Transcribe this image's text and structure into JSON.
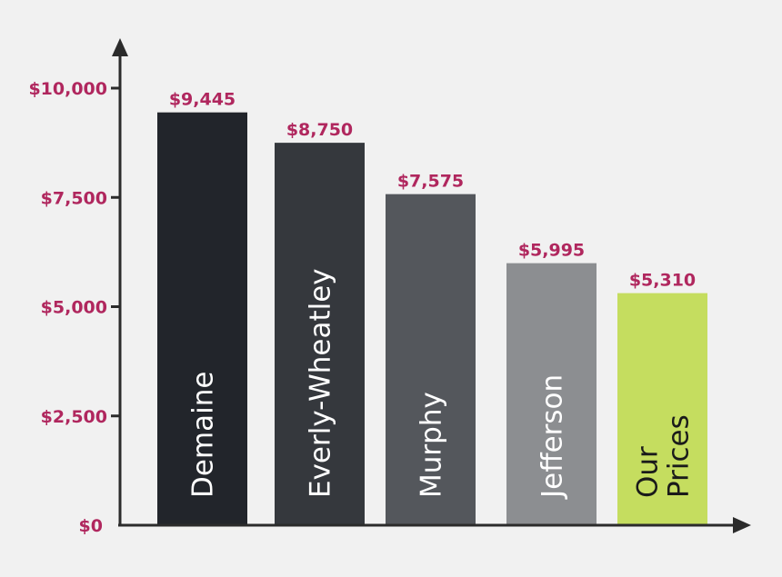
{
  "chart_data": {
    "type": "bar",
    "categories": [
      "Demaine",
      "Everly-Wheatley",
      "Murphy",
      "Jefferson",
      "Our Prices"
    ],
    "category_lines": [
      [
        "Demaine"
      ],
      [
        "Everly-Wheatley"
      ],
      [
        "Murphy"
      ],
      [
        "Jefferson"
      ],
      [
        "Our",
        "Prices"
      ]
    ],
    "values": [
      9445,
      8750,
      7575,
      5995,
      5310
    ],
    "value_labels": [
      "$9,445",
      "$8,750",
      "$7,575",
      "$5,995",
      "$5,310"
    ],
    "bar_colors": [
      "#22252b",
      "#35383d",
      "#54575c",
      "#8c8e91",
      "#c5dd5f"
    ],
    "bar_text_colors": [
      "#ffffff",
      "#ffffff",
      "#ffffff",
      "#ffffff",
      "#1a1a1a"
    ],
    "yticks": [
      0,
      2500,
      5000,
      7500,
      10000
    ],
    "ytick_labels": [
      "$0",
      "$2,500",
      "$5,000",
      "$7,500",
      "$10,000"
    ],
    "ylim": [
      0,
      10000
    ],
    "title": "",
    "xlabel": "",
    "ylabel": "",
    "grid": false,
    "legend": "none",
    "label_color": "#b0275e",
    "axis_color": "#2b2b2b"
  }
}
